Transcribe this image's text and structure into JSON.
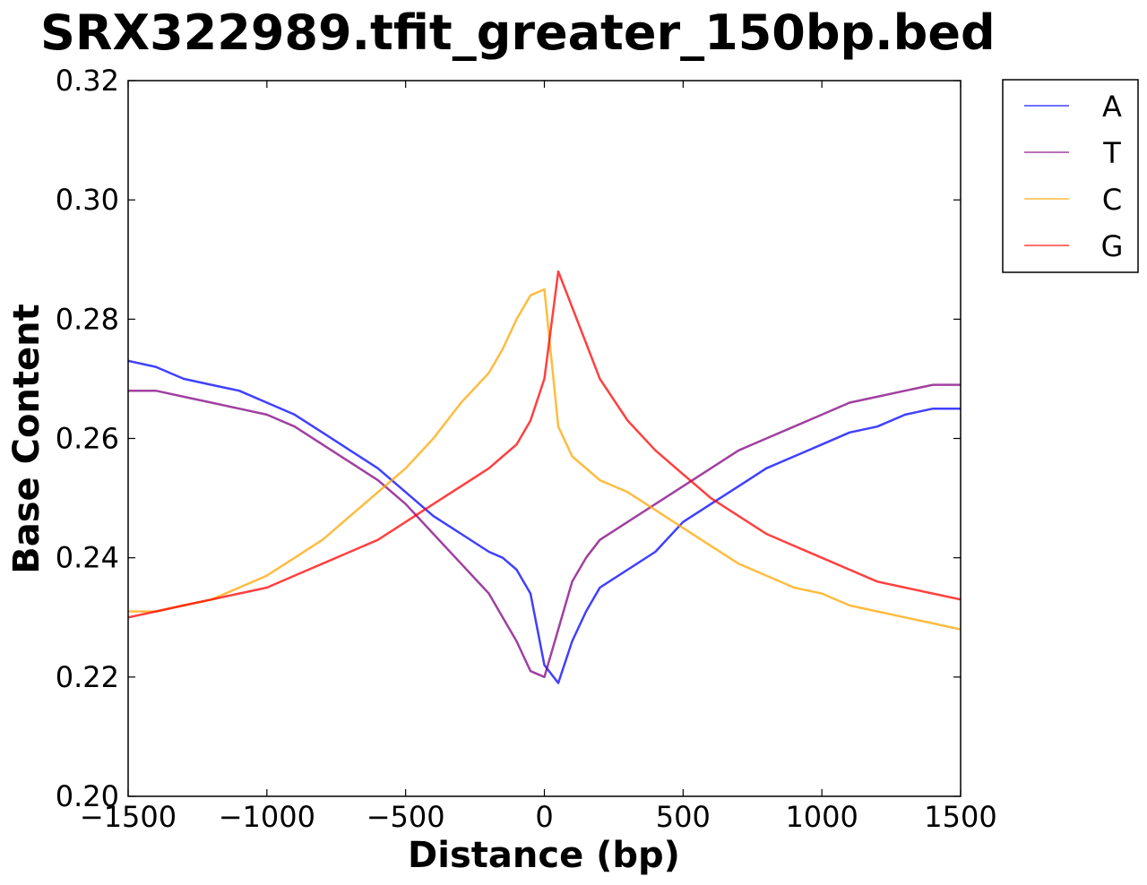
{
  "chart_data": {
    "type": "line",
    "title": "SRX322989.tfit_greater_150bp.bed",
    "xlabel": "Distance (bp)",
    "ylabel": "Base Content",
    "xlim": [
      -1500,
      1500
    ],
    "ylim": [
      0.2,
      0.32
    ],
    "x_ticks": [
      -1500,
      -1000,
      -500,
      0,
      500,
      1000,
      1500
    ],
    "x_tick_labels": [
      "−1500",
      "−1000",
      "−500",
      "0",
      "500",
      "1000",
      "1500"
    ],
    "y_ticks": [
      0.2,
      0.22,
      0.24,
      0.26,
      0.28,
      0.3,
      0.32
    ],
    "y_tick_labels": [
      "0.20",
      "0.22",
      "0.24",
      "0.26",
      "0.28",
      "0.30",
      "0.32"
    ],
    "grid": false,
    "legend_position": "outside-top-right",
    "x": [
      -1500,
      -1400,
      -1300,
      -1200,
      -1100,
      -1000,
      -900,
      -800,
      -700,
      -600,
      -500,
      -400,
      -300,
      -200,
      -150,
      -100,
      -50,
      0,
      50,
      100,
      150,
      200,
      300,
      400,
      500,
      600,
      700,
      800,
      900,
      1000,
      1100,
      1200,
      1300,
      1400,
      1500
    ],
    "series": [
      {
        "name": "A",
        "color": "#0000ff",
        "values": [
          0.273,
          0.272,
          0.27,
          0.269,
          0.268,
          0.266,
          0.264,
          0.261,
          0.258,
          0.255,
          0.251,
          0.247,
          0.244,
          0.241,
          0.24,
          0.238,
          0.234,
          0.222,
          0.219,
          0.226,
          0.231,
          0.235,
          0.238,
          0.241,
          0.246,
          0.249,
          0.252,
          0.255,
          0.257,
          0.259,
          0.261,
          0.262,
          0.264,
          0.265,
          0.265
        ]
      },
      {
        "name": "T",
        "color": "#800080",
        "values": [
          0.268,
          0.268,
          0.267,
          0.266,
          0.265,
          0.264,
          0.262,
          0.259,
          0.256,
          0.253,
          0.249,
          0.244,
          0.239,
          0.234,
          0.23,
          0.226,
          0.221,
          0.22,
          0.228,
          0.236,
          0.24,
          0.243,
          0.246,
          0.249,
          0.252,
          0.255,
          0.258,
          0.26,
          0.262,
          0.264,
          0.266,
          0.267,
          0.268,
          0.269,
          0.269
        ]
      },
      {
        "name": "C",
        "color": "#ffa500",
        "values": [
          0.231,
          0.231,
          0.232,
          0.233,
          0.235,
          0.237,
          0.24,
          0.243,
          0.247,
          0.251,
          0.255,
          0.26,
          0.266,
          0.271,
          0.275,
          0.28,
          0.284,
          0.285,
          0.262,
          0.257,
          0.255,
          0.253,
          0.251,
          0.248,
          0.245,
          0.242,
          0.239,
          0.237,
          0.235,
          0.234,
          0.232,
          0.231,
          0.23,
          0.229,
          0.228
        ]
      },
      {
        "name": "G",
        "color": "#ff0000",
        "values": [
          0.23,
          0.231,
          0.232,
          0.233,
          0.234,
          0.235,
          0.237,
          0.239,
          0.241,
          0.243,
          0.246,
          0.249,
          0.252,
          0.255,
          0.257,
          0.259,
          0.263,
          0.27,
          0.288,
          0.282,
          0.276,
          0.27,
          0.263,
          0.258,
          0.254,
          0.25,
          0.247,
          0.244,
          0.242,
          0.24,
          0.238,
          0.236,
          0.235,
          0.234,
          0.233
        ]
      }
    ]
  }
}
